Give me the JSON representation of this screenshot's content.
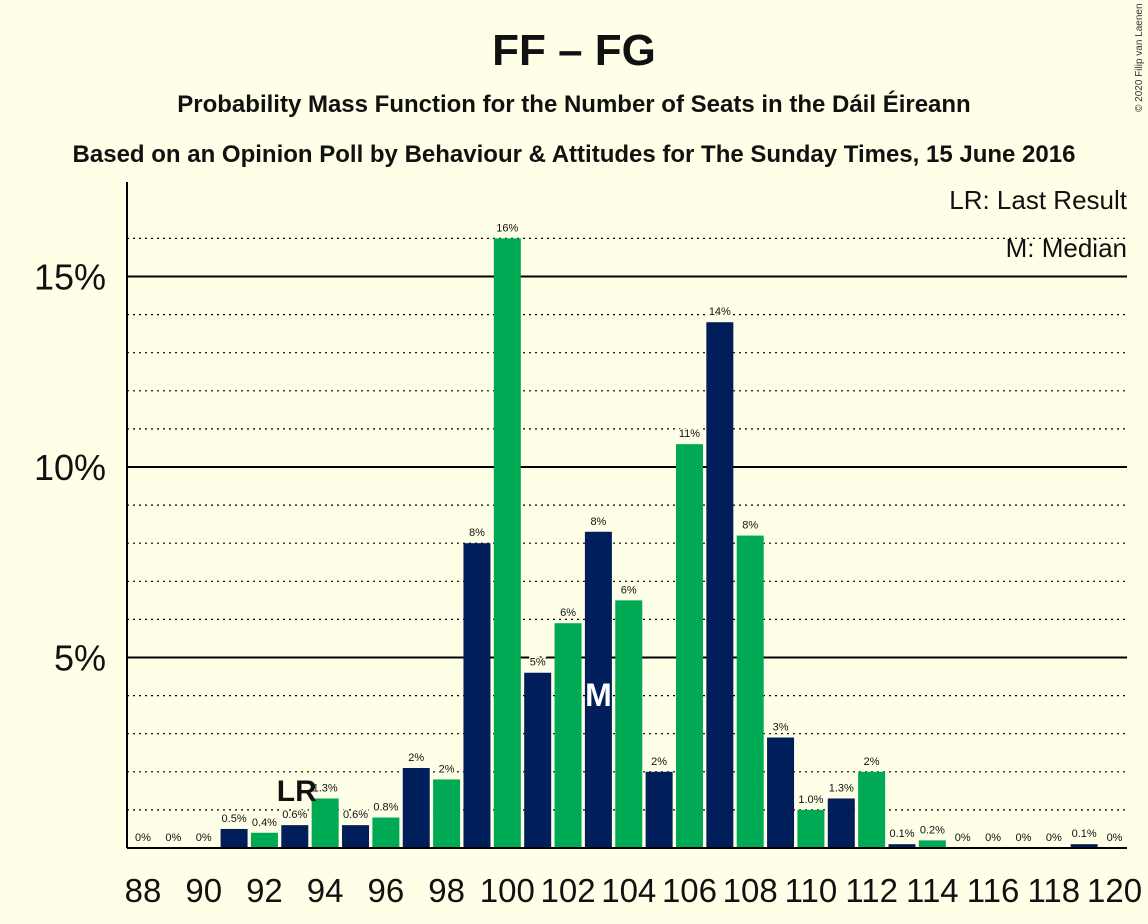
{
  "copyright": "© 2020 Filip van Laenen",
  "chart_data": {
    "type": "bar",
    "title": "FF – FG",
    "subtitle1": "Probability Mass Function for the Number of Seats in the Dáil Éireann",
    "subtitle2": "Based on an Opinion Poll by Behaviour & Attitudes for The Sunday Times, 15 June 2016",
    "ylim": [
      0,
      17.5
    ],
    "y_ticks": [
      {
        "value": 5,
        "label": "5%"
      },
      {
        "value": 10,
        "label": "10%"
      },
      {
        "value": 15,
        "label": "15%"
      }
    ],
    "x_tick_labels": [
      "88",
      "90",
      "92",
      "94",
      "96",
      "98",
      "100",
      "102",
      "104",
      "106",
      "108",
      "110",
      "112",
      "114",
      "116",
      "118",
      "120"
    ],
    "legend": [
      "LR: Last Result",
      "M: Median"
    ],
    "last_result": {
      "seat": 93,
      "label": "LR"
    },
    "median": {
      "seat": 103,
      "label": "M"
    },
    "colors": {
      "navy": "#001E5A",
      "green": "#00AA55",
      "background": "#FFFEE6"
    },
    "seats": [
      88,
      89,
      90,
      91,
      92,
      93,
      94,
      95,
      96,
      97,
      98,
      99,
      100,
      101,
      102,
      103,
      104,
      105,
      106,
      107,
      108,
      109,
      110,
      111,
      112,
      113,
      114,
      115,
      116,
      117,
      118,
      119,
      120
    ],
    "values": [
      0,
      0,
      0,
      0.5,
      0.4,
      0.6,
      1.3,
      0.6,
      0.8,
      2.1,
      1.8,
      8.0,
      16.0,
      4.6,
      5.9,
      8.3,
      6.5,
      2.0,
      10.6,
      13.8,
      8.2,
      2.9,
      1.0,
      1.3,
      2.0,
      0.1,
      0.2,
      0,
      0,
      0,
      0,
      0.1,
      0
    ],
    "value_labels": [
      "0%",
      "0%",
      "0%",
      "0.5%",
      "0.4%",
      "0.6%",
      "1.3%",
      "0.6%",
      "0.8%",
      "2%",
      "2%",
      "8%",
      "16%",
      "5%",
      "6%",
      "8%",
      "6%",
      "2%",
      "11%",
      "14%",
      "8%",
      "3%",
      "1.0%",
      "1.3%",
      "2%",
      "0.1%",
      "0.2%",
      "0%",
      "0%",
      "0%",
      "0%",
      "0.1%",
      "0%"
    ]
  }
}
